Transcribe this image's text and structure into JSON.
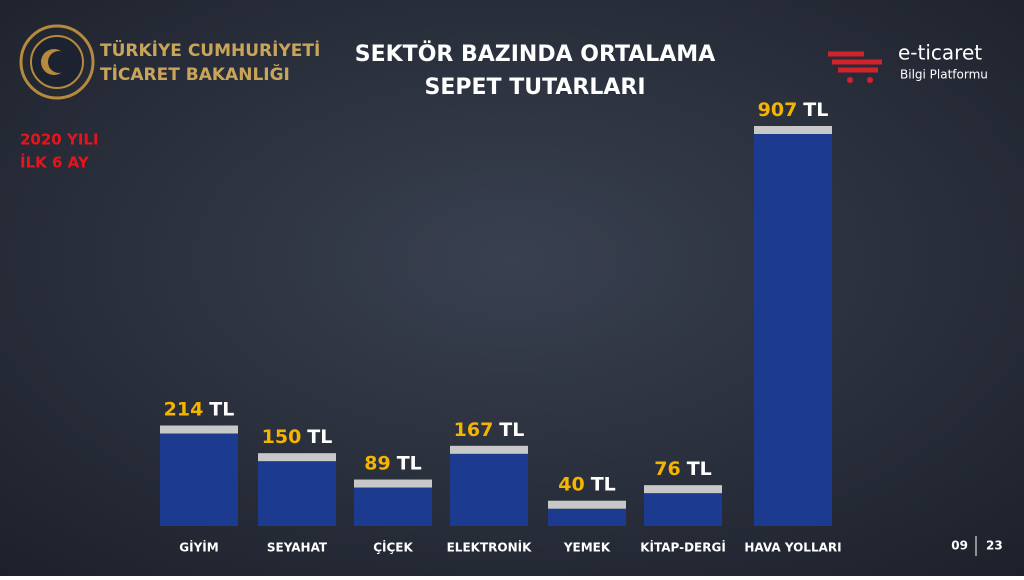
{
  "header": {
    "ministry": [
      "TÜRKİYE CUMHURİYETİ",
      "TİCARET BAKANLIĞI"
    ],
    "logo": "e-ticaret",
    "logo_sub": "Bilgi Platformu",
    "period": [
      "2020 YILI",
      "İLK 6 AY"
    ],
    "page": [
      "09",
      "23"
    ]
  },
  "chart_data": {
    "type": "bar",
    "title": [
      "SEKTÖR BAZINDA ORTALAMA",
      "SEPET TUTARLARI"
    ],
    "categories": [
      "GİYİM",
      "SEYAHAT",
      "ÇİÇEK",
      "ELEKTRONİK",
      "YEMEK",
      "KİTAP-DERGİ",
      "HAVA YOLLARI"
    ],
    "values": [
      214,
      150,
      89,
      167,
      40,
      76,
      907
    ],
    "unit": "TL",
    "color": "#1d3b8e"
  }
}
